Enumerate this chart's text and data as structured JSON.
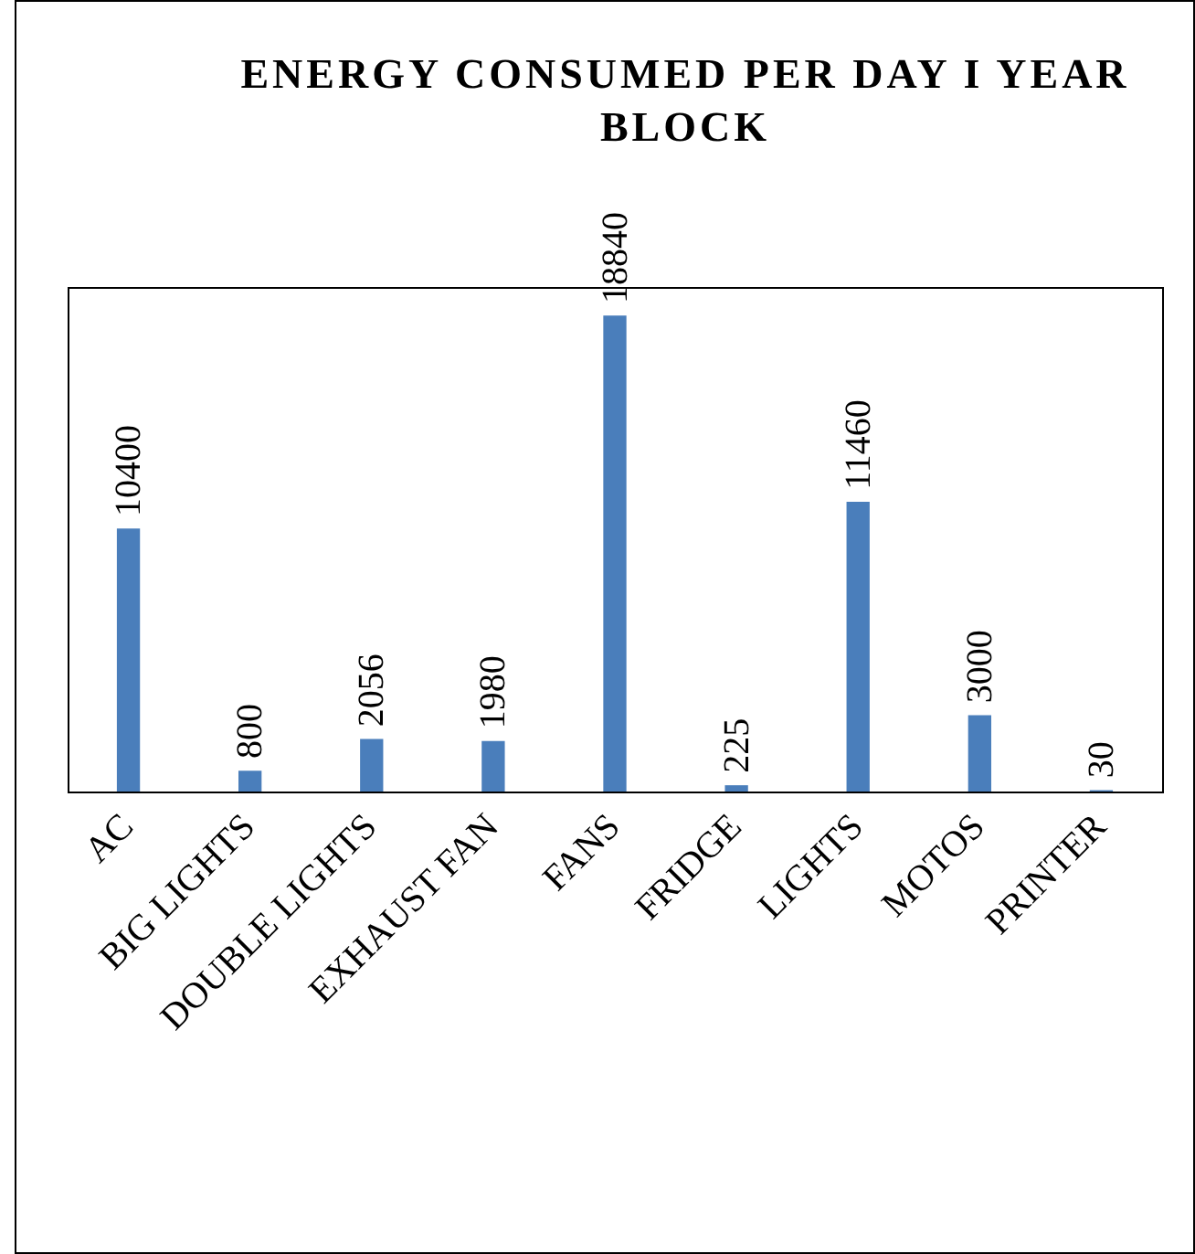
{
  "chart_data": {
    "type": "bar",
    "title": "ENERGY CONSUMED PER DAY I YEAR BLOCK",
    "categories": [
      "AC",
      "BIG LIGHTS",
      "DOUBLE LIGHTS",
      "EXHAUST FAN",
      "FANS",
      "FRIDGE",
      "LIGHTS",
      "MOTOS",
      "PRINTER"
    ],
    "values": [
      10400,
      800,
      2056,
      1980,
      18840,
      225,
      11460,
      3000,
      30
    ],
    "color": "#4a7ebb",
    "ylim": [
      0,
      20000
    ],
    "data_labels": true,
    "grid": false,
    "legend": false,
    "tick_labels": "x"
  }
}
